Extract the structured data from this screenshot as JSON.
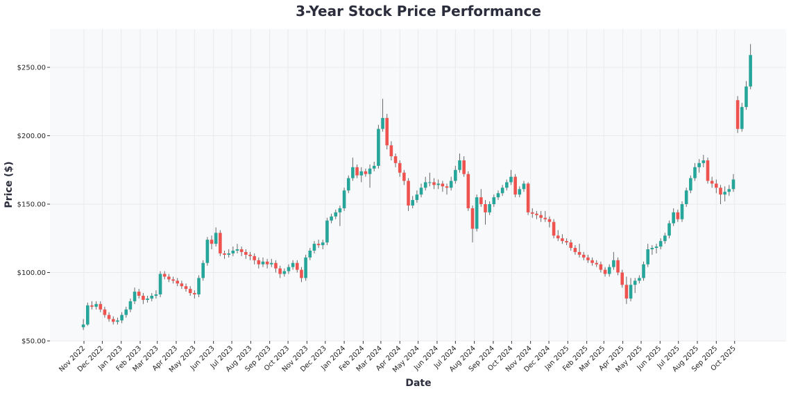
{
  "chart_data": {
    "type": "candlestick",
    "title": "3-Year Stock Price Performance",
    "xlabel": "Date",
    "ylabel": "Price ($)",
    "ylim": [
      50,
      270
    ],
    "yticks": [
      50,
      100,
      150,
      200,
      250
    ],
    "ytick_labels": [
      "$50.00",
      "$100.00",
      "$150.00",
      "$200.00",
      "$250.00"
    ],
    "xtick_dates": [
      "2022-11-01",
      "2022-12-01",
      "2023-01-01",
      "2023-02-01",
      "2023-03-01",
      "2023-04-01",
      "2023-05-01",
      "2023-06-01",
      "2023-07-01",
      "2023-08-01",
      "2023-09-01",
      "2023-10-01",
      "2023-11-01",
      "2023-12-01",
      "2024-01-01",
      "2024-02-01",
      "2024-03-01",
      "2024-04-01",
      "2024-05-01",
      "2024-06-01",
      "2024-07-01",
      "2024-08-01",
      "2024-09-01",
      "2024-10-01",
      "2024-11-01",
      "2024-12-01",
      "2025-01-01",
      "2025-02-01",
      "2025-03-01",
      "2025-04-01",
      "2025-05-01",
      "2025-06-01",
      "2025-07-01",
      "2025-08-01",
      "2025-09-01",
      "2025-10-01"
    ],
    "xtick_labels": [
      "Nov 2022",
      "Dec 2022",
      "Jan 2023",
      "Feb 2023",
      "Mar 2023",
      "Apr 2023",
      "May 2023",
      "Jun 2023",
      "Jul 2023",
      "Aug 2023",
      "Sep 2023",
      "Oct 2023",
      "Nov 2023",
      "Dec 2023",
      "Jan 2024",
      "Feb 2024",
      "Mar 2024",
      "Apr 2024",
      "May 2024",
      "Jun 2024",
      "Jul 2024",
      "Aug 2024",
      "Sep 2024",
      "Oct 2024",
      "Nov 2024",
      "Dec 2024",
      "Jan 2025",
      "Feb 2025",
      "Mar 2025",
      "Apr 2025",
      "May 2025",
      "Jun 2025",
      "Jul 2025",
      "Aug 2025",
      "Sep 2025",
      "Oct 2025"
    ],
    "grid": true,
    "colors": {
      "up": "#26a69a",
      "down": "#ef5350",
      "wick": "#666666",
      "plot_bg": "#f8f9fa",
      "grid": "#e9eaec"
    },
    "columns": [
      "date",
      "open",
      "high",
      "low",
      "close"
    ],
    "candles": [
      [
        "2022-10-31",
        60,
        66,
        58,
        62
      ],
      [
        "2022-11-07",
        62,
        78,
        61,
        76
      ],
      [
        "2022-11-14",
        76,
        79,
        73,
        75
      ],
      [
        "2022-11-21",
        75,
        79,
        73,
        77
      ],
      [
        "2022-11-28",
        77,
        79,
        71,
        73
      ],
      [
        "2022-12-05",
        73,
        75,
        67,
        69
      ],
      [
        "2022-12-12",
        69,
        71,
        64,
        66
      ],
      [
        "2022-12-19",
        66,
        68,
        62,
        64
      ],
      [
        "2022-12-26",
        64,
        67,
        62,
        65
      ],
      [
        "2023-01-02",
        65,
        71,
        63,
        69
      ],
      [
        "2023-01-09",
        69,
        75,
        67,
        73
      ],
      [
        "2023-01-16",
        73,
        81,
        71,
        79
      ],
      [
        "2023-01-23",
        79,
        89,
        77,
        86
      ],
      [
        "2023-01-30",
        86,
        88,
        81,
        83
      ],
      [
        "2023-02-06",
        83,
        85,
        77,
        80
      ],
      [
        "2023-02-13",
        80,
        83,
        78,
        81
      ],
      [
        "2023-02-20",
        81,
        85,
        79,
        83
      ],
      [
        "2023-02-27",
        83,
        87,
        81,
        84
      ],
      [
        "2023-03-06",
        84,
        101,
        82,
        99
      ],
      [
        "2023-03-13",
        99,
        101,
        95,
        97
      ],
      [
        "2023-03-20",
        97,
        99,
        93,
        95
      ],
      [
        "2023-03-27",
        95,
        97,
        92,
        94
      ],
      [
        "2023-04-03",
        94,
        96,
        90,
        92
      ],
      [
        "2023-04-10",
        92,
        94,
        88,
        90
      ],
      [
        "2023-04-17",
        90,
        92,
        86,
        88
      ],
      [
        "2023-04-24",
        88,
        90,
        83,
        85
      ],
      [
        "2023-05-01",
        85,
        87,
        81,
        84
      ],
      [
        "2023-05-08",
        84,
        98,
        82,
        96
      ],
      [
        "2023-05-15",
        96,
        109,
        94,
        107
      ],
      [
        "2023-05-22",
        107,
        126,
        105,
        124
      ],
      [
        "2023-05-29",
        124,
        127,
        117,
        121
      ],
      [
        "2023-06-05",
        121,
        133,
        119,
        129
      ],
      [
        "2023-06-12",
        129,
        131,
        112,
        114
      ],
      [
        "2023-06-19",
        114,
        116,
        110,
        113
      ],
      [
        "2023-06-26",
        113,
        117,
        111,
        114
      ],
      [
        "2023-07-03",
        114,
        119,
        112,
        116
      ],
      [
        "2023-07-10",
        116,
        121,
        114,
        117
      ],
      [
        "2023-07-17",
        117,
        119,
        112,
        115
      ],
      [
        "2023-07-24",
        115,
        117,
        110,
        113
      ],
      [
        "2023-07-31",
        113,
        115,
        109,
        112
      ],
      [
        "2023-08-07",
        112,
        114,
        106,
        109
      ],
      [
        "2023-08-14",
        109,
        111,
        103,
        106
      ],
      [
        "2023-08-21",
        106,
        111,
        104,
        108
      ],
      [
        "2023-08-28",
        108,
        110,
        103,
        106
      ],
      [
        "2023-09-04",
        106,
        110,
        104,
        107
      ],
      [
        "2023-09-11",
        107,
        109,
        100,
        103
      ],
      [
        "2023-09-18",
        103,
        105,
        96,
        99
      ],
      [
        "2023-09-25",
        99,
        103,
        97,
        101
      ],
      [
        "2023-10-02",
        101,
        106,
        99,
        104
      ],
      [
        "2023-10-09",
        104,
        109,
        102,
        107
      ],
      [
        "2023-10-16",
        107,
        109,
        100,
        102
      ],
      [
        "2023-10-23",
        102,
        104,
        93,
        96
      ],
      [
        "2023-10-30",
        96,
        113,
        94,
        111
      ],
      [
        "2023-11-06",
        111,
        118,
        109,
        116
      ],
      [
        "2023-11-13",
        116,
        123,
        114,
        121
      ],
      [
        "2023-11-20",
        121,
        124,
        118,
        120
      ],
      [
        "2023-11-27",
        120,
        124,
        117,
        122
      ],
      [
        "2023-12-04",
        122,
        140,
        120,
        138
      ],
      [
        "2023-12-11",
        138,
        143,
        136,
        141
      ],
      [
        "2023-12-18",
        141,
        146,
        139,
        144
      ],
      [
        "2023-12-25",
        144,
        149,
        134,
        147
      ],
      [
        "2024-01-01",
        147,
        162,
        145,
        160
      ],
      [
        "2024-01-08",
        160,
        171,
        158,
        169
      ],
      [
        "2024-01-15",
        169,
        184,
        167,
        177
      ],
      [
        "2024-01-22",
        177,
        179,
        169,
        171
      ],
      [
        "2024-01-29",
        171,
        177,
        166,
        174
      ],
      [
        "2024-02-05",
        174,
        176,
        170,
        172
      ],
      [
        "2024-02-12",
        172,
        179,
        162,
        176
      ],
      [
        "2024-02-19",
        176,
        181,
        174,
        178
      ],
      [
        "2024-02-26",
        178,
        208,
        176,
        205
      ],
      [
        "2024-03-04",
        205,
        227,
        203,
        213
      ],
      [
        "2024-03-11",
        213,
        216,
        190,
        193
      ],
      [
        "2024-03-18",
        193,
        196,
        182,
        185
      ],
      [
        "2024-03-25",
        185,
        187,
        177,
        180
      ],
      [
        "2024-04-01",
        180,
        182,
        170,
        173
      ],
      [
        "2024-04-08",
        173,
        175,
        164,
        167
      ],
      [
        "2024-04-15",
        167,
        169,
        145,
        149
      ],
      [
        "2024-04-22",
        149,
        156,
        147,
        153
      ],
      [
        "2024-04-29",
        153,
        160,
        151,
        157
      ],
      [
        "2024-05-06",
        157,
        165,
        155,
        162
      ],
      [
        "2024-05-13",
        162,
        170,
        160,
        166
      ],
      [
        "2024-05-20",
        166,
        173,
        163,
        166
      ],
      [
        "2024-05-27",
        166,
        169,
        161,
        164
      ],
      [
        "2024-06-03",
        164,
        168,
        161,
        165
      ],
      [
        "2024-06-10",
        165,
        167,
        159,
        163
      ],
      [
        "2024-06-17",
        163,
        165,
        157,
        162
      ],
      [
        "2024-06-24",
        162,
        170,
        160,
        167
      ],
      [
        "2024-07-01",
        167,
        178,
        165,
        175
      ],
      [
        "2024-07-08",
        175,
        187,
        173,
        182
      ],
      [
        "2024-07-15",
        182,
        185,
        170,
        172
      ],
      [
        "2024-07-22",
        172,
        174,
        145,
        147
      ],
      [
        "2024-07-29",
        147,
        149,
        122,
        132
      ],
      [
        "2024-08-05",
        132,
        157,
        130,
        155
      ],
      [
        "2024-08-12",
        155,
        161,
        148,
        150
      ],
      [
        "2024-08-19",
        150,
        153,
        135,
        144
      ],
      [
        "2024-08-26",
        144,
        152,
        142,
        150
      ],
      [
        "2024-09-02",
        150,
        157,
        148,
        155
      ],
      [
        "2024-09-09",
        155,
        160,
        153,
        158
      ],
      [
        "2024-09-16",
        158,
        164,
        156,
        162
      ],
      [
        "2024-09-23",
        162,
        168,
        160,
        166
      ],
      [
        "2024-09-30",
        166,
        175,
        164,
        170
      ],
      [
        "2024-10-07",
        170,
        172,
        155,
        157
      ],
      [
        "2024-10-14",
        157,
        163,
        155,
        161
      ],
      [
        "2024-10-21",
        161,
        167,
        159,
        165
      ],
      [
        "2024-10-28",
        165,
        166,
        142,
        144
      ],
      [
        "2024-11-04",
        144,
        147,
        140,
        143
      ],
      [
        "2024-11-11",
        143,
        145,
        139,
        142
      ],
      [
        "2024-11-18",
        142,
        145,
        137,
        140
      ],
      [
        "2024-11-25",
        140,
        145,
        137,
        139
      ],
      [
        "2024-12-02",
        139,
        141,
        133,
        137
      ],
      [
        "2024-12-09",
        137,
        139,
        125,
        127
      ],
      [
        "2024-12-16",
        127,
        131,
        123,
        125
      ],
      [
        "2024-12-23",
        125,
        128,
        121,
        123
      ],
      [
        "2024-12-30",
        123,
        125,
        120,
        122
      ],
      [
        "2025-01-06",
        122,
        124,
        116,
        118
      ],
      [
        "2025-01-13",
        118,
        120,
        113,
        115
      ],
      [
        "2025-01-20",
        115,
        121,
        111,
        113
      ],
      [
        "2025-01-27",
        113,
        115,
        109,
        111
      ],
      [
        "2025-02-03",
        111,
        113,
        107,
        109
      ],
      [
        "2025-02-10",
        109,
        111,
        105,
        107
      ],
      [
        "2025-02-17",
        107,
        109,
        104,
        106
      ],
      [
        "2025-02-24",
        106,
        108,
        100,
        102
      ],
      [
        "2025-03-03",
        102,
        104,
        97,
        99
      ],
      [
        "2025-03-10",
        99,
        106,
        97,
        104
      ],
      [
        "2025-03-17",
        104,
        115,
        102,
        109
      ],
      [
        "2025-03-24",
        109,
        111,
        98,
        100
      ],
      [
        "2025-03-31",
        100,
        102,
        89,
        91
      ],
      [
        "2025-04-07",
        91,
        97,
        77,
        81
      ],
      [
        "2025-04-14",
        81,
        96,
        79,
        91
      ],
      [
        "2025-04-21",
        91,
        96,
        85,
        94
      ],
      [
        "2025-04-28",
        94,
        98,
        92,
        96
      ],
      [
        "2025-05-05",
        96,
        108,
        94,
        106
      ],
      [
        "2025-05-12",
        106,
        121,
        104,
        117
      ],
      [
        "2025-05-19",
        117,
        120,
        113,
        118
      ],
      [
        "2025-05-26",
        118,
        121,
        114,
        119
      ],
      [
        "2025-06-02",
        119,
        125,
        117,
        123
      ],
      [
        "2025-06-09",
        123,
        129,
        121,
        127
      ],
      [
        "2025-06-16",
        127,
        138,
        125,
        136
      ],
      [
        "2025-06-23",
        136,
        147,
        134,
        144
      ],
      [
        "2025-06-30",
        144,
        146,
        137,
        139
      ],
      [
        "2025-07-07",
        139,
        152,
        137,
        150
      ],
      [
        "2025-07-14",
        150,
        162,
        148,
        160
      ],
      [
        "2025-07-21",
        160,
        171,
        158,
        169
      ],
      [
        "2025-07-28",
        169,
        180,
        167,
        177
      ],
      [
        "2025-08-04",
        177,
        183,
        173,
        180
      ],
      [
        "2025-08-11",
        180,
        186,
        177,
        182
      ],
      [
        "2025-08-18",
        182,
        184,
        165,
        167
      ],
      [
        "2025-08-25",
        167,
        170,
        162,
        165
      ],
      [
        "2025-09-01",
        165,
        168,
        158,
        162
      ],
      [
        "2025-09-08",
        162,
        164,
        150,
        157
      ],
      [
        "2025-09-15",
        157,
        163,
        152,
        159
      ],
      [
        "2025-09-22",
        159,
        164,
        156,
        161
      ],
      [
        "2025-09-29",
        161,
        172,
        159,
        168
      ],
      [
        "2025-10-06",
        226,
        229,
        202,
        205
      ],
      [
        "2025-10-13",
        205,
        224,
        203,
        221
      ],
      [
        "2025-10-20",
        221,
        240,
        219,
        236
      ],
      [
        "2025-10-27",
        236,
        267,
        234,
        259
      ]
    ]
  }
}
